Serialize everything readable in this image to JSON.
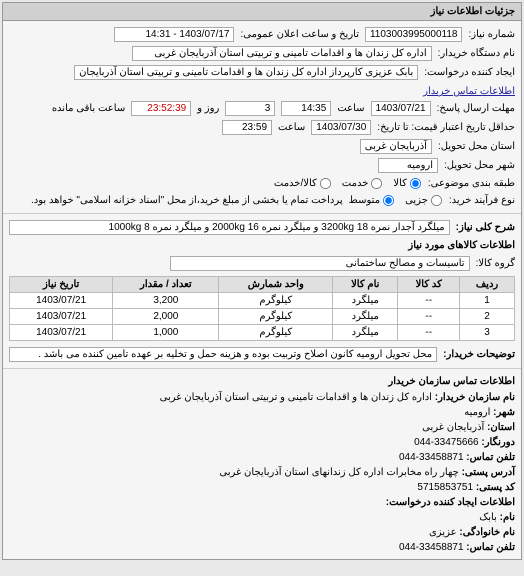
{
  "panel_title": "جزئیات اطلاعات نیاز",
  "need_number_lbl": "شماره نیاز:",
  "need_number": "1103003995000118",
  "announce_lbl": "تاریخ و ساعت اعلان عمومی:",
  "announce_date": "1403/07/17 - 14:31",
  "buyer_org_lbl": "نام دستگاه خریدار:",
  "buyer_org": "اداره کل زندان ها و اقدامات تامینی و تربیتی استان آذربایجان غربی",
  "creator_lbl": "ایجاد کننده درخواست:",
  "creator": "بابک عزیزی کارپرداز اداره کل زندان ها و اقدامات تامینی و تربیتی استان آذربایجان",
  "contact_link": "اطلاعات تماس خریدار",
  "deadline_reply_lbl": "مهلت ارسال پاسخ:",
  "deadline_reply_date": "1403/07/21",
  "time_lbl": "ساعت",
  "deadline_reply_time": "14:35",
  "days_lbl": "روز و",
  "days_remain": "3",
  "remain_time": "23:52:39",
  "remain_lbl": "ساعت باقی مانده",
  "validity_lbl": "حداقل تاریخ اعتبار قیمت: تا تاریخ:",
  "validity_date": "1403/07/30",
  "validity_time": "23:59",
  "province_lbl": "استان محل تحویل:",
  "province": "آذربایجان غربی",
  "city_lbl": "شهر محل تحویل:",
  "city": "ارومیه",
  "section_type_lbl": "طبقه بندی موضوعی:",
  "type_goods": "کالا",
  "type_service": "خدمت",
  "type_both": "کالا/خدمت",
  "process_lbl": "نوع فرآیند خرید:",
  "proc_low": "جزیی",
  "proc_mid": "متوسط",
  "proc_note": "پرداخت تمام یا بخشی از مبلغ خرید،از محل \"اسناد خزانه اسلامی\" خواهد بود.",
  "desc_lbl": "شرح کلی نیاز:",
  "desc": "میلگرد آجدار نمره 18 3200kg و میلگرد نمره 16 2000kg و میلگرد نمره 8 1000kg",
  "items_title": "اطلاعات کالاهای مورد نیاز",
  "group_lbl": "گروه کالا:",
  "group": "تاسیسات و مصالح ساختمانی",
  "table": {
    "headers": [
      "ردیف",
      "کد کالا",
      "نام کالا",
      "واحد شمارش",
      "تعداد / مقدار",
      "تاریخ نیاز"
    ],
    "rows": [
      [
        "1",
        "--",
        "میلگرد",
        "کیلوگرم",
        "3,200",
        "1403/07/21"
      ],
      [
        "2",
        "--",
        "میلگرد",
        "کیلوگرم",
        "2,000",
        "1403/07/21"
      ],
      [
        "3",
        "--",
        "میلگرد",
        "کیلوگرم",
        "1,000",
        "1403/07/21"
      ]
    ]
  },
  "explain_lbl": "توضیحات خریدار:",
  "explain": "محل تحویل ارومیه کانون اصلاح وتربیت بوده و هزینه حمل و تخلیه بر عهده تامین کننده می باشد .",
  "contact_title": "اطلاعات تماس سازمان خریدار",
  "footer": {
    "org_lbl": "نام سازمان خریدار:",
    "org": "اداره کل زندان ها و اقدامات تامینی و تربیتی استان آذربایجان غربی",
    "city_lbl": "شهر:",
    "city": "ارومیه",
    "province_lbl": "استان:",
    "province": "آذربایجان غربی",
    "fax_lbl": "دورنگار:",
    "fax": "33475666-044",
    "tel_lbl": "تلفن تماس:",
    "tel": "33458871-044",
    "addr_lbl": "آدرس پستی:",
    "addr": "چهار راه مخابرات اداره کل زندانهای استان آذربایجان غربی",
    "postal_lbl": "کد پستی:",
    "postal": "5715853751",
    "req_creator_title": "اطلاعات ایجاد کننده درخواست:",
    "name_lbl": "نام:",
    "name": "بابک",
    "family_lbl": "نام خانوادگی:",
    "family": "عزیزی",
    "tel2_lbl": "تلفن تماس:",
    "tel2": "33458871-044"
  }
}
